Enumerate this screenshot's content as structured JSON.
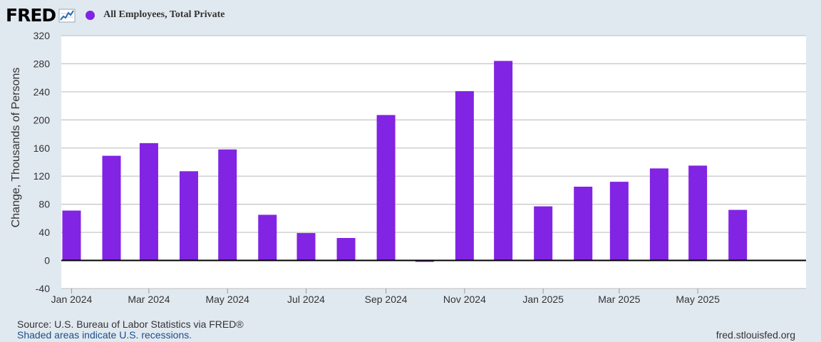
{
  "header": {
    "logo_text": "FRED",
    "logo_icon": "line-chart-icon"
  },
  "legend": {
    "label": "All Employees, Total Private",
    "color": "#8224e3"
  },
  "footer": {
    "source": "U.S. Bureau of Labor Statistics via FRED®",
    "source_prefix": "Source: ",
    "recession_note": "Shaded areas indicate U.S. recessions.",
    "url": "fred.stlouisfed.org"
  },
  "chart_data": {
    "type": "bar",
    "title": "",
    "ylabel": "Change, Thousands of Persons",
    "xlabel": "",
    "ylim": [
      -40,
      320
    ],
    "yticks": [
      320,
      280,
      240,
      200,
      160,
      120,
      80,
      40,
      0,
      -40
    ],
    "xlim": [
      "2023-12-24",
      "2025-07-24"
    ],
    "xticks": [
      {
        "date": "2024-01-01",
        "label": "Jan 2024"
      },
      {
        "date": "2024-03-01",
        "label": "Mar 2024"
      },
      {
        "date": "2024-05-01",
        "label": "May 2024"
      },
      {
        "date": "2024-07-01",
        "label": "Jul 2024"
      },
      {
        "date": "2024-09-01",
        "label": "Sep 2024"
      },
      {
        "date": "2024-11-01",
        "label": "Nov 2024"
      },
      {
        "date": "2025-01-01",
        "label": "Jan 2025"
      },
      {
        "date": "2025-03-01",
        "label": "Mar 2025"
      },
      {
        "date": "2025-05-01",
        "label": "May 2025"
      }
    ],
    "grid": true,
    "series": [
      {
        "name": "All Employees, Total Private",
        "color": "#8224e3",
        "points": [
          {
            "date": "2024-01-01",
            "value": 71
          },
          {
            "date": "2024-02-01",
            "value": 149
          },
          {
            "date": "2024-03-01",
            "value": 167
          },
          {
            "date": "2024-04-01",
            "value": 127
          },
          {
            "date": "2024-05-01",
            "value": 158
          },
          {
            "date": "2024-06-01",
            "value": 65
          },
          {
            "date": "2024-07-01",
            "value": 39
          },
          {
            "date": "2024-08-01",
            "value": 32
          },
          {
            "date": "2024-09-01",
            "value": 207
          },
          {
            "date": "2024-10-01",
            "value": -2
          },
          {
            "date": "2024-11-01",
            "value": 241
          },
          {
            "date": "2024-12-01",
            "value": 284
          },
          {
            "date": "2025-01-01",
            "value": 77
          },
          {
            "date": "2025-02-01",
            "value": 105
          },
          {
            "date": "2025-03-01",
            "value": 112
          },
          {
            "date": "2025-04-01",
            "value": 131
          },
          {
            "date": "2025-05-01",
            "value": 135
          },
          {
            "date": "2025-06-01",
            "value": 72
          }
        ]
      }
    ]
  }
}
